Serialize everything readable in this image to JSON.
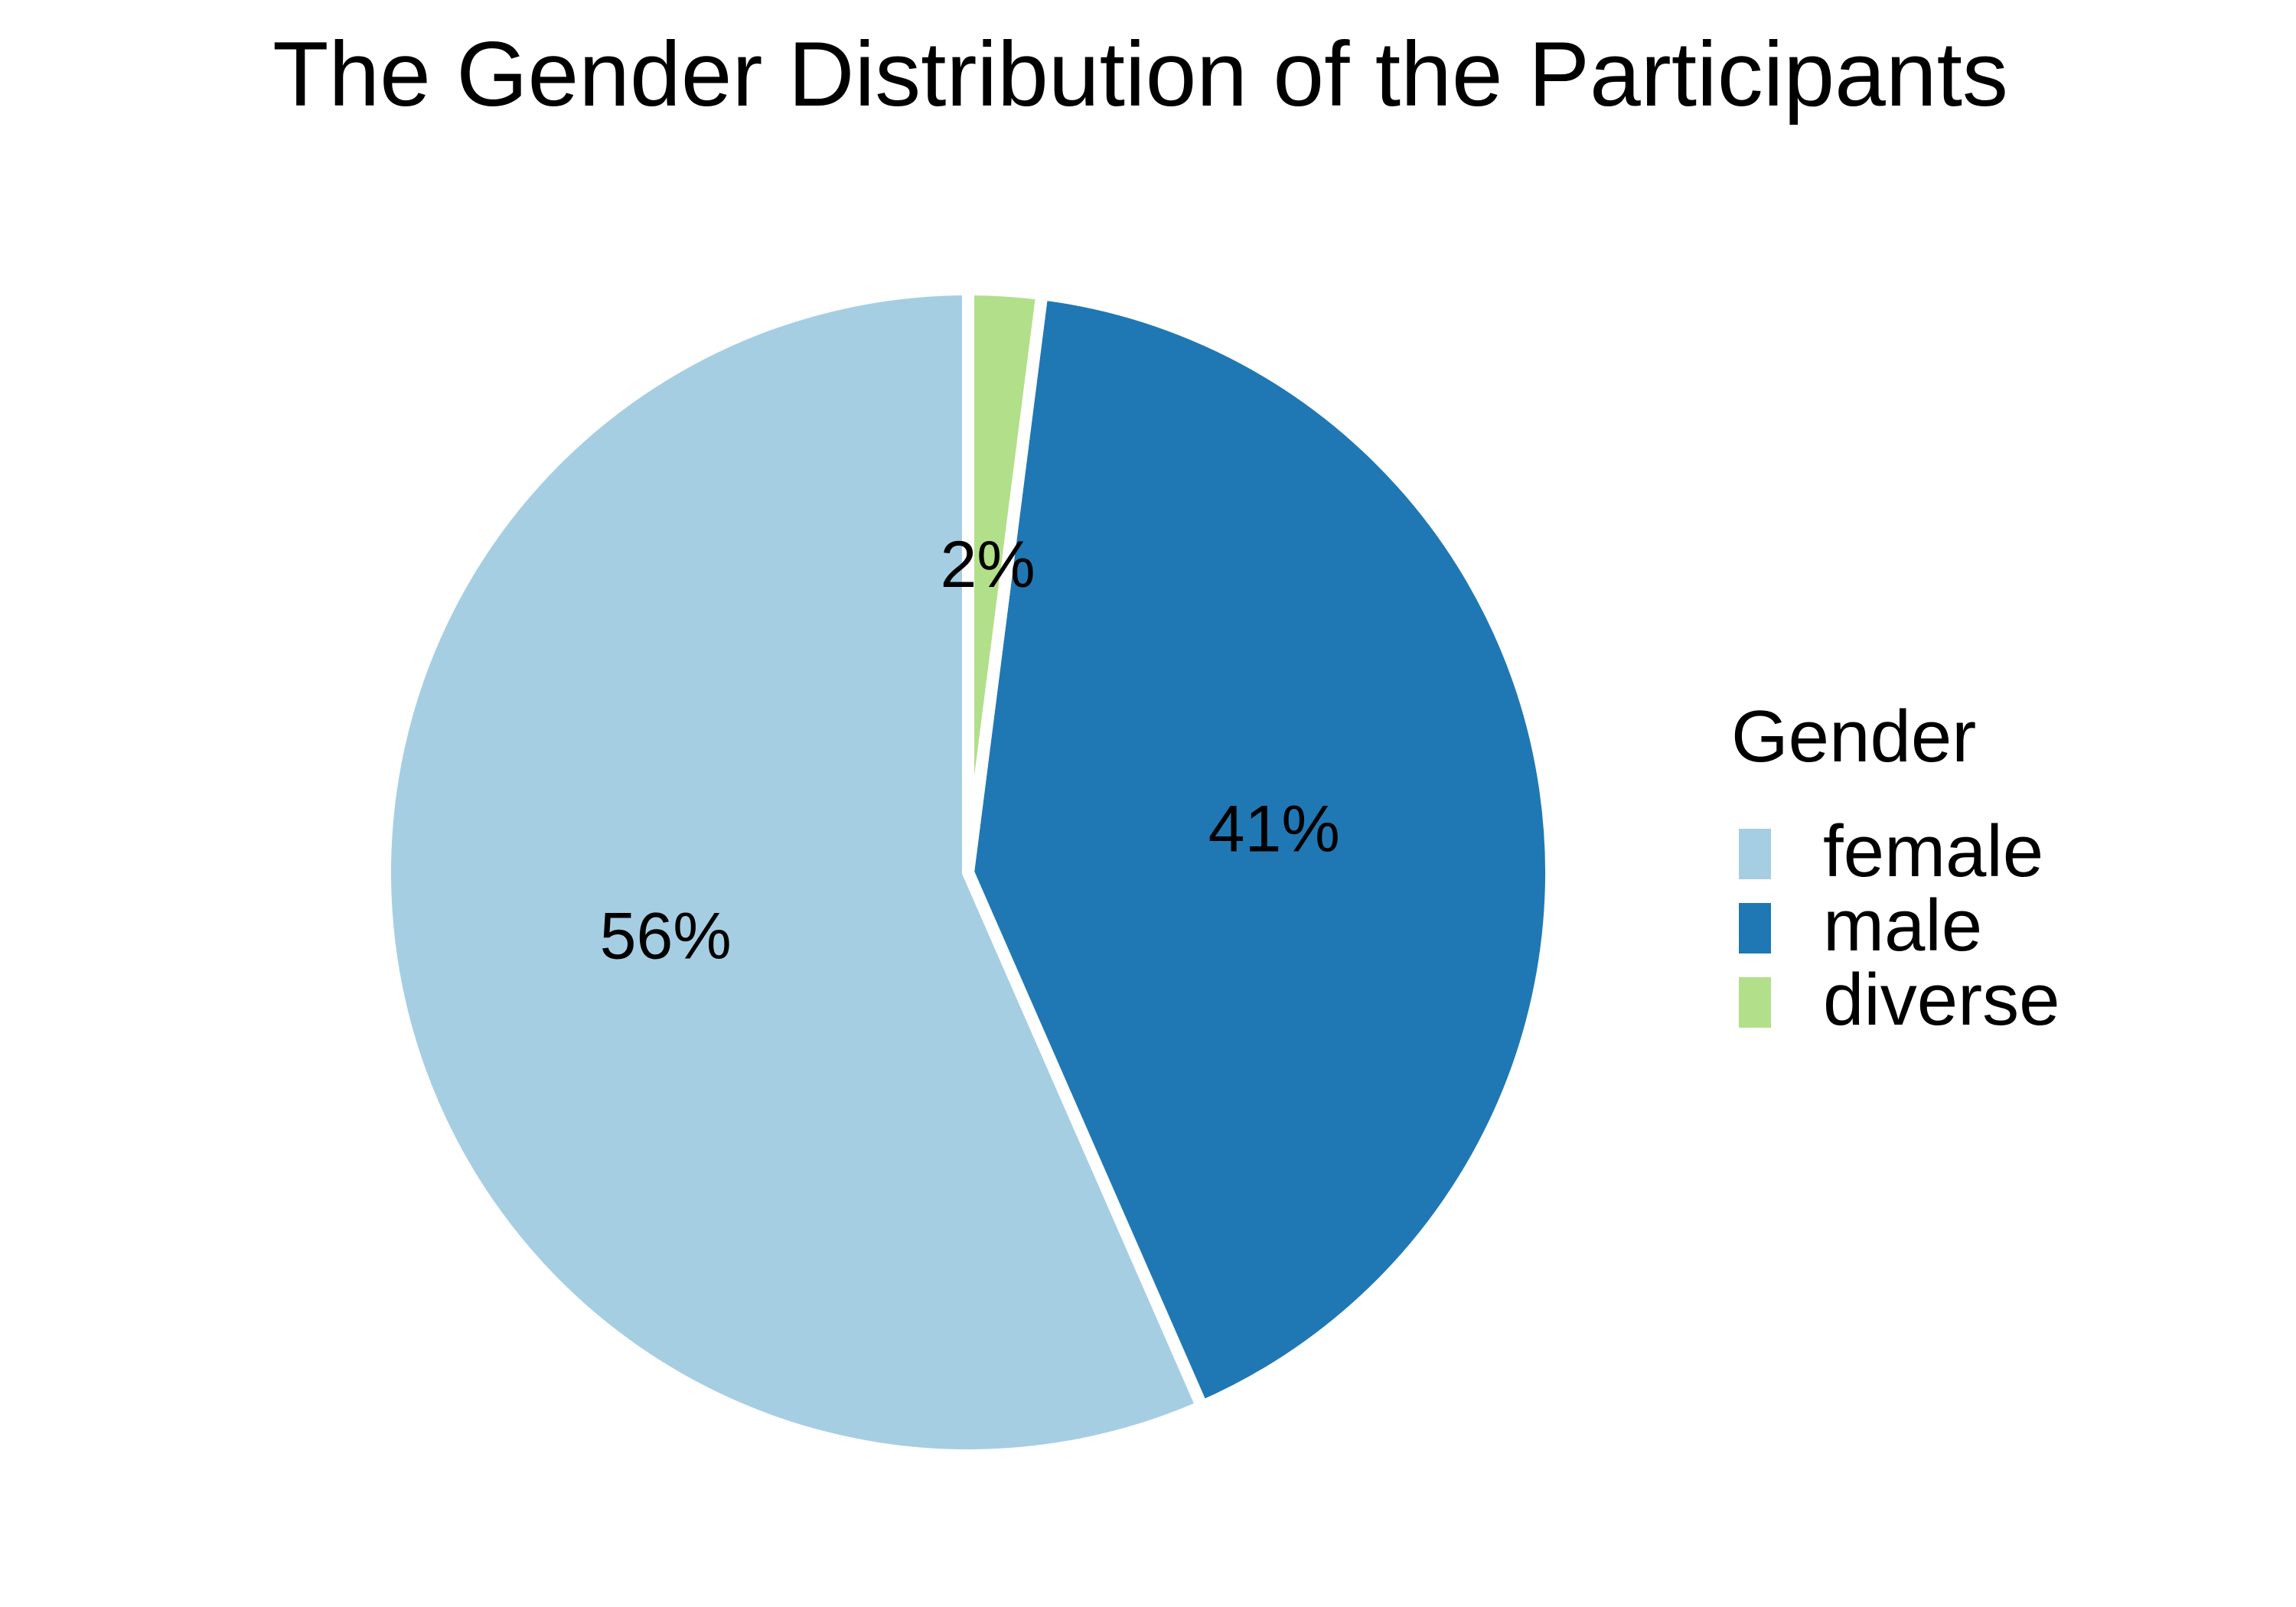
{
  "chart_data": {
    "type": "pie",
    "title": "The Gender Distribution of the Participants",
    "categories": [
      "female",
      "male",
      "diverse"
    ],
    "values": [
      56,
      41,
      2
    ],
    "value_labels": [
      "56%",
      "41%",
      "2%"
    ],
    "colors": [
      "#a6cee3",
      "#1f78b4",
      "#b2df8a"
    ],
    "start_angle_degrees": 0,
    "direction": "counterclockwise",
    "slice_separator_color": "#ffffff",
    "legend": {
      "title": "Gender",
      "position": "right",
      "entries": [
        "female",
        "male",
        "diverse"
      ]
    }
  }
}
